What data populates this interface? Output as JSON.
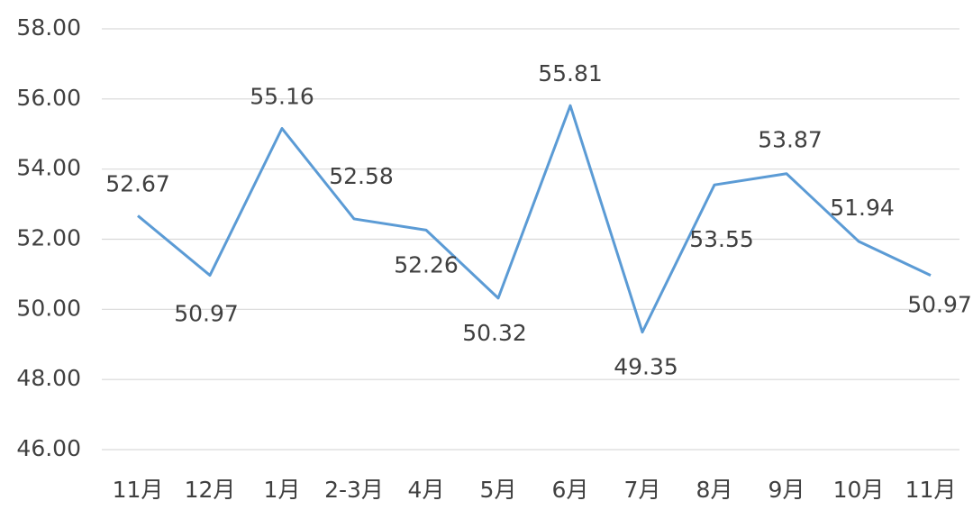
{
  "chart_data": {
    "type": "line",
    "categories": [
      "11月",
      "12月",
      "1月",
      "2-3月",
      "4月",
      "5月",
      "6月",
      "7月",
      "8月",
      "9月",
      "10月",
      "11月"
    ],
    "values": [
      52.67,
      50.97,
      55.16,
      52.58,
      52.26,
      50.32,
      55.81,
      49.35,
      53.55,
      53.87,
      51.94,
      50.97
    ],
    "color": "#5b9bd5",
    "ylim": [
      46,
      58
    ],
    "yticks": [
      {
        "value": 46,
        "label": "46.00"
      },
      {
        "value": 48,
        "label": "48.00"
      },
      {
        "value": 50,
        "label": "50.00"
      },
      {
        "value": 52,
        "label": "52.00"
      },
      {
        "value": 54,
        "label": "54.00"
      },
      {
        "value": 56,
        "label": "56.00"
      },
      {
        "value": 58,
        "label": "58.00"
      }
    ],
    "grid": true
  }
}
